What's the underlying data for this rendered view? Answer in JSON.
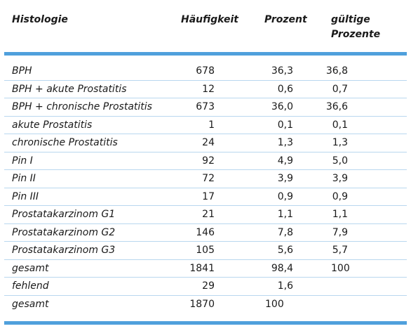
{
  "table": {
    "headers": {
      "histology": "Histologie",
      "frequency": "Häufigkeit",
      "percent": "Prozent",
      "valid_percent_line1": "gültige",
      "valid_percent_line2": "Prozente"
    },
    "rows": [
      {
        "histology": "BPH",
        "frequency": "678",
        "percent": "36,3",
        "valid_percent": "36,8"
      },
      {
        "histology": "BPH + akute Prostatitis",
        "frequency": "12",
        "percent": "0,6",
        "valid_percent": "0,7"
      },
      {
        "histology": "BPH + chronische Prostatitis",
        "frequency": "673",
        "percent": "36,0",
        "valid_percent": "36,6"
      },
      {
        "histology": "akute Prostatitis",
        "frequency": "1",
        "percent": "0,1",
        "valid_percent": "0,1"
      },
      {
        "histology": "chronische Prostatitis",
        "frequency": "24",
        "percent": "1,3",
        "valid_percent": "1,3"
      },
      {
        "histology": "Pin I",
        "frequency": "92",
        "percent": "4,9",
        "valid_percent": "5,0"
      },
      {
        "histology": "Pin II",
        "frequency": "72",
        "percent": "3,9",
        "valid_percent": "3,9"
      },
      {
        "histology": "Pin III",
        "frequency": "17",
        "percent": "0,9",
        "valid_percent": "0,9"
      },
      {
        "histology": "Prostatakarzinom G1",
        "frequency": "21",
        "percent": "1,1",
        "valid_percent": "1,1"
      },
      {
        "histology": "Prostatakarzinom G2",
        "frequency": "146",
        "percent": "7,8",
        "valid_percent": "7,9"
      },
      {
        "histology": "Prostatakarzinom G3",
        "frequency": "105",
        "percent": "5,6",
        "valid_percent": "5,7"
      },
      {
        "histology": "gesamt",
        "frequency": "1841",
        "percent": "98,4",
        "valid_percent": "100"
      },
      {
        "histology": "fehlend",
        "frequency": "29",
        "percent": "1,6",
        "valid_percent": ""
      },
      {
        "histology": "gesamt",
        "frequency": "1870",
        "percent": "100",
        "valid_percent": ""
      }
    ]
  },
  "colors": {
    "accent_rule": "#4fa0dc",
    "row_divider": "#b9d7ef",
    "text": "#1a1a1a"
  }
}
